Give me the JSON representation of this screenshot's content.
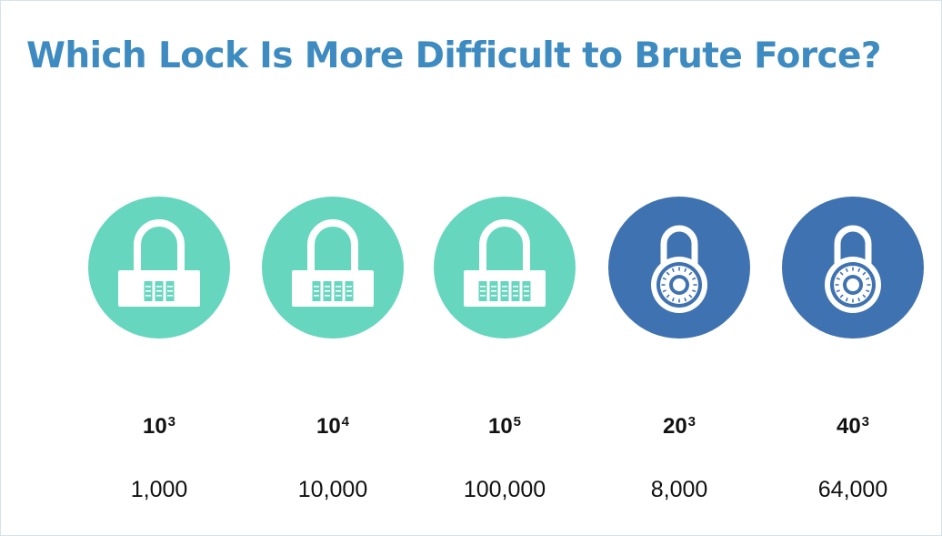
{
  "title": "Which Lock Is More Difficult to Brute Force?",
  "colors": {
    "title": "#3d8bc0",
    "padlock_circle": "#66d6bf",
    "dial_circle": "#3f72b0",
    "icon_fill": "#ffffff"
  },
  "locks": [
    {
      "kind": "combination-padlock",
      "icon": "combination-padlock-icon",
      "digit_wheels": 3,
      "base": "10",
      "exponent": "3",
      "total": "1,000"
    },
    {
      "kind": "combination-padlock",
      "icon": "combination-padlock-icon",
      "digit_wheels": 4,
      "base": "10",
      "exponent": "4",
      "total": "10,000"
    },
    {
      "kind": "combination-padlock",
      "icon": "combination-padlock-icon",
      "digit_wheels": 5,
      "base": "10",
      "exponent": "5",
      "total": "100,000"
    },
    {
      "kind": "dial-padlock",
      "icon": "dial-padlock-icon",
      "base": "20",
      "exponent": "3",
      "total": "8,000"
    },
    {
      "kind": "dial-padlock",
      "icon": "dial-padlock-icon",
      "base": "40",
      "exponent": "3",
      "total": "64,000"
    }
  ]
}
